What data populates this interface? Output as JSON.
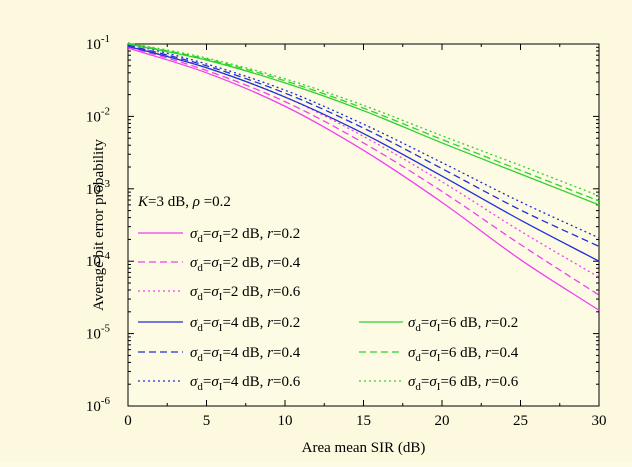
{
  "chart_data": {
    "type": "line",
    "xlabel": "Area mean SIR (dB)",
    "ylabel": "Average bit error probability",
    "xlim": [
      0,
      30
    ],
    "ylim": [
      1e-06,
      0.1
    ],
    "yscale": "log",
    "grid": false,
    "annotation": {
      "parts": [
        "K",
        "=3 dB, ",
        "ρ",
        " =0.2"
      ]
    },
    "x_ticks": [
      0,
      5,
      10,
      15,
      20,
      25,
      30
    ],
    "y_ticks": [
      {
        "value": 1e-06,
        "base": "10",
        "exp": "-6"
      },
      {
        "value": 1e-05,
        "base": "10",
        "exp": "-5"
      },
      {
        "value": 0.0001,
        "base": "10",
        "exp": "-4"
      },
      {
        "value": 0.001,
        "base": "10",
        "exp": "-3"
      },
      {
        "value": 0.01,
        "base": "10",
        "exp": "-2"
      },
      {
        "value": 0.1,
        "base": "10",
        "exp": "-1"
      }
    ],
    "x": [
      0,
      5,
      10,
      15,
      20,
      25,
      30
    ],
    "series": [
      {
        "sigma": "2",
        "r": "0.2",
        "color": "#f040f0",
        "dash": "solid",
        "values": [
          0.088,
          0.04,
          0.0138,
          0.0034,
          0.00065,
          0.000105,
          2.1e-05
        ]
      },
      {
        "sigma": "2",
        "r": "0.4",
        "color": "#f040f0",
        "dash": "dashed",
        "values": [
          0.092,
          0.043,
          0.016,
          0.0043,
          0.00092,
          0.00017,
          3.4e-05
        ]
      },
      {
        "sigma": "2",
        "r": "0.6",
        "color": "#f040f0",
        "dash": "dotted",
        "values": [
          0.097,
          0.047,
          0.0185,
          0.0053,
          0.00125,
          0.00026,
          6e-05
        ]
      },
      {
        "sigma": "4",
        "r": "0.2",
        "color": "#1f2fd8",
        "dash": "solid",
        "values": [
          0.093,
          0.047,
          0.0185,
          0.0058,
          0.0015,
          0.00037,
          0.0001
        ]
      },
      {
        "sigma": "4",
        "r": "0.4",
        "color": "#1f2fd8",
        "dash": "dashed",
        "values": [
          0.097,
          0.05,
          0.021,
          0.0069,
          0.0019,
          0.00051,
          0.00016
        ]
      },
      {
        "sigma": "4",
        "r": "0.6",
        "color": "#1f2fd8",
        "dash": "dotted",
        "values": [
          0.102,
          0.053,
          0.023,
          0.0078,
          0.0023,
          0.00066,
          0.00021
        ]
      },
      {
        "sigma": "6",
        "r": "0.2",
        "color": "#2ed12e",
        "dash": "solid",
        "values": [
          0.1,
          0.06,
          0.029,
          0.012,
          0.0043,
          0.0016,
          0.0006
        ]
      },
      {
        "sigma": "6",
        "r": "0.4",
        "color": "#2ed12e",
        "dash": "dashed",
        "values": [
          0.102,
          0.062,
          0.031,
          0.013,
          0.0048,
          0.0018,
          0.00068
        ]
      },
      {
        "sigma": "6",
        "r": "0.6",
        "color": "#2ed12e",
        "dash": "dotted",
        "values": [
          0.104,
          0.064,
          0.033,
          0.0142,
          0.0054,
          0.0021,
          0.0008
        ]
      }
    ],
    "legend_labels": {
      "sigma_sym": "σ",
      "sub_d": "d",
      "sub_I": "I",
      "eq": "=",
      "db_part": " dB, ",
      "r_sym": "r",
      "r_eq": "="
    }
  }
}
